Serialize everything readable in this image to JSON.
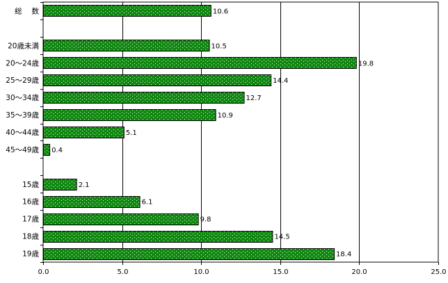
{
  "chart_data": {
    "type": "bar",
    "orientation": "horizontal",
    "categories": [
      "総　 数",
      "",
      "20歳未満",
      "20～24歳",
      "25～29歳",
      "30～34歳",
      "35～39歳",
      "40～44歳",
      "45～49歳",
      "",
      "15歳",
      "16歳",
      "17歳",
      "18歳",
      "19歳"
    ],
    "values": [
      10.6,
      null,
      10.5,
      19.8,
      14.4,
      12.7,
      10.9,
      5.1,
      0.4,
      null,
      2.1,
      6.1,
      9.8,
      14.5,
      18.4
    ],
    "value_labels": [
      "10.6",
      "",
      "10.5",
      "19.8",
      "14.4",
      "12.7",
      "10.9",
      "5.1",
      "0.4",
      "",
      "2.1",
      "6.1",
      "9.8",
      "14.5",
      "18.4"
    ],
    "xlim": [
      0,
      25
    ],
    "xticks": [
      0,
      5,
      10,
      15,
      20,
      25
    ],
    "xtick_labels": [
      "0.0",
      "5.0",
      "10.0",
      "15.0",
      "20.0",
      "25.0"
    ],
    "grid": "vertical lines at major ticks",
    "legend": "none",
    "title": "",
    "xlabel": "",
    "ylabel": "",
    "bar_color": "#118811",
    "bar_pattern": "white dotted fill",
    "grid_color": "#000000"
  }
}
